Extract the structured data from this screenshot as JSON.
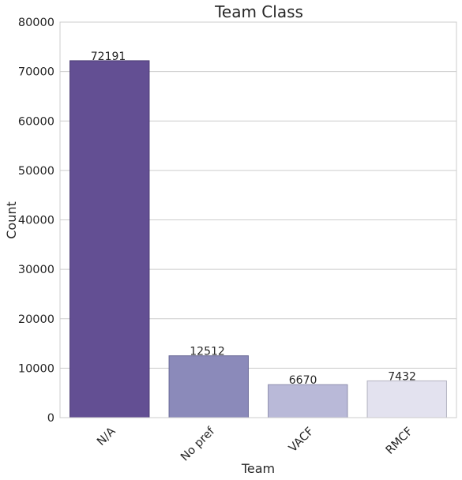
{
  "chart_data": {
    "type": "bar",
    "title": "Team Class",
    "xlabel": "Team",
    "ylabel": "Count",
    "categories": [
      "N/A",
      "No pref",
      "VACF",
      "RMCF"
    ],
    "values": [
      72191,
      12512,
      6670,
      7432
    ],
    "data_labels": [
      "72191",
      "12512",
      "6670",
      "7432"
    ],
    "ylim": [
      0,
      80000
    ],
    "yticks": [
      0,
      10000,
      20000,
      30000,
      40000,
      50000,
      60000,
      70000,
      80000
    ],
    "ytick_labels": [
      "0",
      "10000",
      "20000",
      "30000",
      "40000",
      "50000",
      "60000",
      "70000",
      "80000"
    ],
    "grid": "horizontal",
    "colors": [
      "#634f93",
      "#8b8aba",
      "#b9b9d8",
      "#e3e2ef"
    ],
    "edge_colors": [
      "#4b3c74",
      "#6a6a98",
      "#9090ae",
      "#b3b2c0"
    ]
  }
}
